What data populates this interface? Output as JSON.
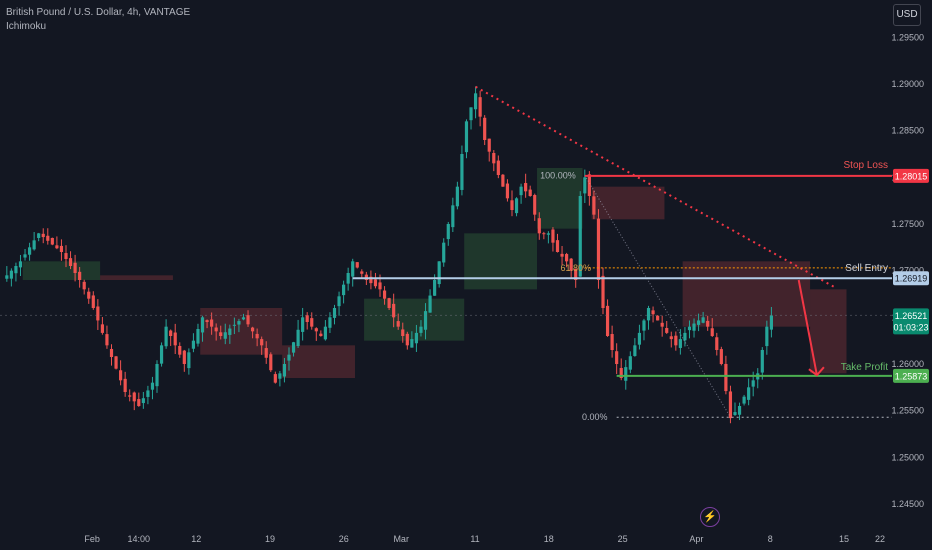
{
  "header": {
    "title": "British Pound / U.S. Dollar, 4h, VANTAGE",
    "indicator": "Ichimoku",
    "currency": "USD"
  },
  "icons": {
    "alert": "lightning-bolt-icon"
  },
  "colors": {
    "background": "#131722",
    "bull": "#26a69a",
    "bear": "#ef5350",
    "stop_loss": "#f23645",
    "take_profit": "#4caf50",
    "entry": "#b3cde8",
    "current_price": "#0a8a6f",
    "trendline": "#f23645",
    "entry_dotted": "#ff9800"
  },
  "chart_data": {
    "type": "candlestick",
    "symbol": "British Pound / U.S. Dollar",
    "timeframe": "4h",
    "ylim": [
      1.242,
      1.299
    ],
    "y_ticks": [
      "1.29500",
      "1.29000",
      "1.28500",
      "1.28000",
      "1.27500",
      "1.27000",
      "1.26500",
      "1.26000",
      "1.25500",
      "1.25000",
      "1.24500"
    ],
    "x_ticks": [
      "Feb",
      "14:00",
      "12",
      "19",
      "26",
      "Mar",
      "11",
      "18",
      "25",
      "Apr",
      "8",
      "15",
      "22"
    ],
    "price_path": [
      [
        0,
        1.269
      ],
      [
        4,
        1.271
      ],
      [
        8,
        1.274
      ],
      [
        13,
        1.272
      ],
      [
        17,
        1.269
      ],
      [
        20,
        1.266
      ],
      [
        23,
        1.262
      ],
      [
        27,
        1.257
      ],
      [
        30,
        1.2555
      ],
      [
        33,
        1.258
      ],
      [
        36,
        1.264
      ],
      [
        40,
        1.26
      ],
      [
        44,
        1.265
      ],
      [
        48,
        1.263
      ],
      [
        53,
        1.265
      ],
      [
        57,
        1.262
      ],
      [
        60,
        1.258
      ],
      [
        63,
        1.261
      ],
      [
        66,
        1.265
      ],
      [
        70,
        1.263
      ],
      [
        73,
        1.266
      ],
      [
        77,
        1.271
      ],
      [
        80,
        1.269
      ],
      [
        83,
        1.268
      ],
      [
        86,
        1.265
      ],
      [
        89,
        1.262
      ],
      [
        92,
        1.264
      ],
      [
        95,
        1.269
      ],
      [
        98,
        1.275
      ],
      [
        100,
        1.279
      ],
      [
        102,
        1.286
      ],
      [
        104,
        1.289
      ],
      [
        106,
        1.284
      ],
      [
        108,
        1.2815
      ],
      [
        110,
        1.279
      ],
      [
        112,
        1.2765
      ],
      [
        114,
        1.279
      ],
      [
        116,
        1.278
      ],
      [
        118,
        1.274
      ],
      [
        120,
        1.274
      ],
      [
        122,
        1.272
      ],
      [
        124,
        1.271
      ],
      [
        126,
        1.269
      ],
      [
        127,
        1.278
      ],
      [
        128,
        1.28
      ],
      [
        130,
        1.276
      ],
      [
        131,
        1.269
      ],
      [
        133,
        1.263
      ],
      [
        136,
        1.2585
      ],
      [
        139,
        1.262
      ],
      [
        142,
        1.266
      ],
      [
        145,
        1.264
      ],
      [
        148,
        1.262
      ],
      [
        151,
        1.264
      ],
      [
        154,
        1.265
      ],
      [
        156,
        1.263
      ],
      [
        158,
        1.26
      ],
      [
        160,
        1.2542
      ],
      [
        162,
        1.2555
      ],
      [
        164,
        1.2575
      ],
      [
        166,
        1.259
      ],
      [
        168,
        1.264
      ],
      [
        169,
        1.2652
      ]
    ],
    "ichimoku_cloud": [
      {
        "from": 5,
        "to": 22,
        "top": 1.271,
        "bottom": 1.269,
        "trend": "bull"
      },
      {
        "from": 22,
        "to": 38,
        "top": 1.2695,
        "bottom": 1.269,
        "trend": "bear"
      },
      {
        "from": 44,
        "to": 62,
        "top": 1.266,
        "bottom": 1.261,
        "trend": "bear"
      },
      {
        "from": 62,
        "to": 78,
        "top": 1.262,
        "bottom": 1.2585,
        "trend": "bear"
      },
      {
        "from": 80,
        "to": 102,
        "top": 1.267,
        "bottom": 1.2625,
        "trend": "bull"
      },
      {
        "from": 102,
        "to": 118,
        "top": 1.274,
        "bottom": 1.268,
        "trend": "bull"
      },
      {
        "from": 118,
        "to": 128,
        "top": 1.281,
        "bottom": 1.2745,
        "trend": "bull"
      },
      {
        "from": 130,
        "to": 146,
        "top": 1.279,
        "bottom": 1.2755,
        "trend": "bear"
      },
      {
        "from": 150,
        "to": 178,
        "top": 1.271,
        "bottom": 1.264,
        "trend": "bear"
      },
      {
        "from": 178,
        "to": 186,
        "top": 1.268,
        "bottom": 1.259,
        "trend": "bear"
      }
    ],
    "levels": [
      {
        "name": "Stop Loss",
        "value": 1.28015,
        "label": "1.28015"
      },
      {
        "name": "Sell Entry",
        "value": 1.26919,
        "label": "1.26919"
      },
      {
        "name": "Take Profit",
        "value": 1.25873,
        "label": "1.25873"
      }
    ],
    "current_price": {
      "label": "1.26521",
      "countdown": "01:03:23",
      "value": 1.26521
    },
    "fib_labels": {
      "top": "100.00%",
      "mid": "61.80%",
      "bottom": "0.00%"
    },
    "fib_values": {
      "top": 1.2802,
      "mid": 1.2703,
      "bottom": 1.2543
    },
    "trendline": {
      "from": [
        104,
        1.2897
      ],
      "to": [
        183,
        1.2682
      ]
    },
    "projection_arrow": {
      "from": [
        175,
        1.269
      ],
      "to": [
        179,
        1.2588
      ]
    },
    "grid": false
  }
}
